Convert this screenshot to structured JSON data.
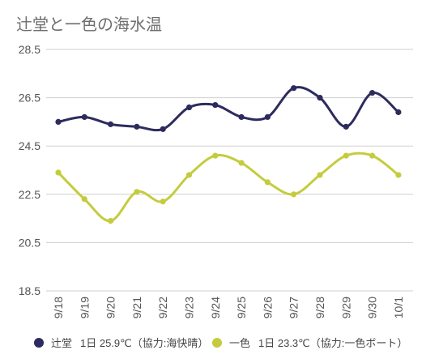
{
  "chart_data": {
    "type": "line",
    "title": "辻堂と一色の海水温",
    "categories": [
      "9/18",
      "9/19",
      "9/20",
      "9/21",
      "9/22",
      "9/23",
      "9/24",
      "9/25",
      "9/26",
      "9/27",
      "9/28",
      "9/29",
      "9/30",
      "10/1"
    ],
    "y_ticks": [
      "28.5",
      "26.5",
      "24.5",
      "22.5",
      "20.5",
      "18.5"
    ],
    "ylim": [
      18.5,
      28.5
    ],
    "grid": true,
    "legend_position": "bottom",
    "series": [
      {
        "name": "辻堂",
        "legend_detail": "1日 25.9℃（協力:海快晴）",
        "color": "#2d2b5e",
        "values": [
          25.5,
          25.7,
          25.4,
          25.3,
          25.2,
          26.1,
          26.2,
          25.7,
          25.7,
          26.9,
          26.5,
          25.3,
          26.7,
          25.9
        ]
      },
      {
        "name": "一色",
        "legend_detail": "1日 23.3℃（協力:一色ボート）",
        "color": "#c4cc3e",
        "values": [
          23.4,
          22.3,
          21.4,
          22.6,
          22.2,
          23.3,
          24.1,
          23.8,
          23.0,
          22.5,
          23.3,
          24.1,
          24.1,
          23.3
        ]
      }
    ]
  }
}
